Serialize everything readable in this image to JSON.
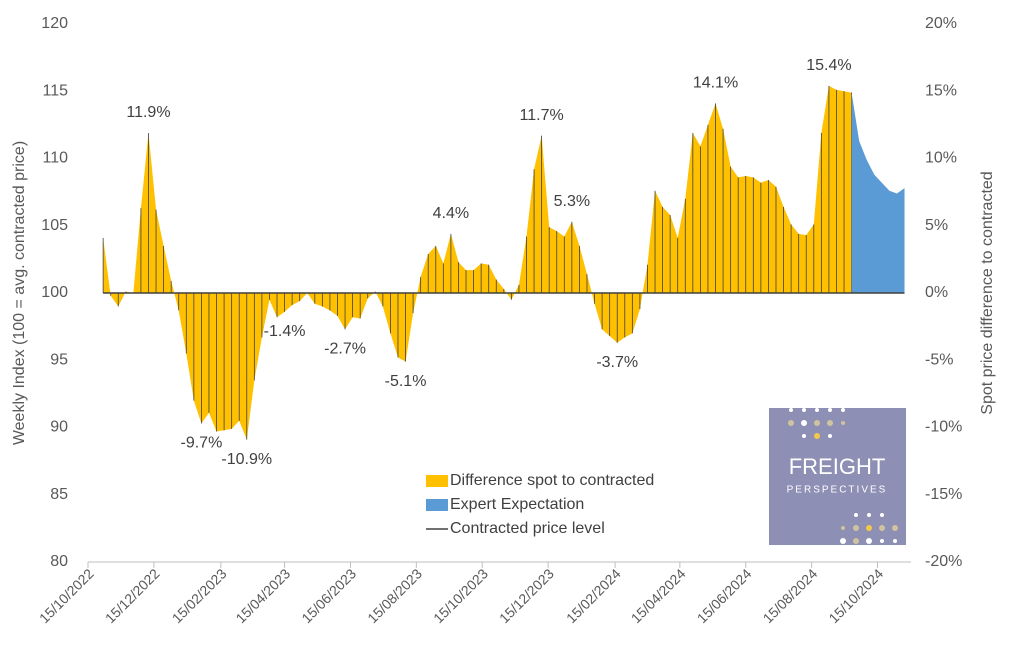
{
  "chart_data": {
    "type": "area",
    "ylabel": "Weekly Index (100 = avg. contracted price)",
    "y2label": "Spot price difference to contracted",
    "ylim": [
      80,
      120
    ],
    "yticks": [
      80,
      85,
      90,
      95,
      100,
      105,
      110,
      115,
      120
    ],
    "y2lim": [
      -20,
      20
    ],
    "y2ticks": [
      {
        "value": -20,
        "label": "-20%"
      },
      {
        "value": -15,
        "label": "-15%"
      },
      {
        "value": -10,
        "label": "-10%"
      },
      {
        "value": -5,
        "label": "-5%"
      },
      {
        "value": 0,
        "label": "0%"
      },
      {
        "value": 5,
        "label": "5%"
      },
      {
        "value": 10,
        "label": "10%"
      },
      {
        "value": 15,
        "label": "15%"
      },
      {
        "value": 20,
        "label": "20%"
      }
    ],
    "xlim": [
      "15/10/2022",
      "15/11/2024"
    ],
    "xticks": [
      "15/10/2022",
      "15/12/2022",
      "15/02/2023",
      "15/04/2023",
      "15/06/2023",
      "15/08/2023",
      "15/10/2023",
      "15/12/2023",
      "15/02/2024",
      "15/04/2024",
      "15/06/2024",
      "15/08/2024",
      "15/10/2024"
    ],
    "series": [
      {
        "name": "Difference spot to contracted",
        "color": "#FFC000",
        "axis": "y2",
        "drop_lines": true,
        "x": [
          "29/10/2022",
          "05/11/2022",
          "12/11/2022",
          "19/11/2022",
          "26/11/2022",
          "03/12/2022",
          "10/12/2022",
          "17/12/2022",
          "24/12/2022",
          "31/12/2022",
          "07/01/2023",
          "14/01/2023",
          "21/01/2023",
          "28/01/2023",
          "04/02/2023",
          "11/02/2023",
          "18/02/2023",
          "25/02/2023",
          "04/03/2023",
          "11/03/2023",
          "18/03/2023",
          "25/03/2023",
          "01/04/2023",
          "08/04/2023",
          "15/04/2023",
          "22/04/2023",
          "29/04/2023",
          "06/05/2023",
          "13/05/2023",
          "20/05/2023",
          "27/05/2023",
          "03/06/2023",
          "10/06/2023",
          "17/06/2023",
          "24/06/2023",
          "01/07/2023",
          "08/07/2023",
          "15/07/2023",
          "22/07/2023",
          "29/07/2023",
          "05/08/2023",
          "12/08/2023",
          "19/08/2023",
          "26/08/2023",
          "02/09/2023",
          "09/09/2023",
          "16/09/2023",
          "23/09/2023",
          "30/09/2023",
          "07/10/2023",
          "14/10/2023",
          "21/10/2023",
          "28/10/2023",
          "04/11/2023",
          "11/11/2023",
          "18/11/2023",
          "25/11/2023",
          "02/12/2023",
          "09/12/2023",
          "16/12/2023",
          "23/12/2023",
          "30/12/2023",
          "06/01/2024",
          "13/01/2024",
          "20/01/2024",
          "27/01/2024",
          "03/02/2024",
          "10/02/2024",
          "17/02/2024",
          "24/02/2024",
          "02/03/2024",
          "09/03/2024",
          "16/03/2024",
          "23/03/2024",
          "30/03/2024",
          "06/04/2024",
          "13/04/2024",
          "20/04/2024",
          "27/04/2024",
          "04/05/2024",
          "11/05/2024",
          "18/05/2024",
          "25/05/2024",
          "01/06/2024",
          "08/06/2024",
          "15/06/2024",
          "22/06/2024",
          "29/06/2024",
          "06/07/2024",
          "13/07/2024",
          "20/07/2024",
          "27/07/2024",
          "03/08/2024",
          "10/08/2024",
          "17/08/2024",
          "24/08/2024",
          "31/08/2024",
          "07/09/2024",
          "14/09/2024",
          "21/09/2024"
        ],
        "values": [
          4.1,
          -0.2,
          -1.0,
          0.1,
          0.0,
          6.3,
          11.9,
          6.2,
          3.5,
          0.9,
          -1.3,
          -4.5,
          -8.0,
          -9.7,
          -8.9,
          -10.3,
          -10.2,
          -10.1,
          -9.5,
          -10.9,
          -6.5,
          -3.3,
          -0.5,
          -1.8,
          -1.4,
          -0.9,
          -0.6,
          0.0,
          -0.8,
          -1.0,
          -1.3,
          -1.7,
          -2.7,
          -1.8,
          -1.9,
          -0.4,
          0.1,
          -1.0,
          -3.0,
          -4.8,
          -5.1,
          -1.5,
          1.2,
          2.9,
          3.5,
          2.2,
          4.4,
          2.3,
          1.7,
          1.7,
          2.2,
          2.1,
          1.0,
          0.3,
          -0.5,
          0.6,
          4.2,
          9.2,
          11.7,
          4.9,
          4.6,
          4.2,
          5.3,
          3.5,
          1.4,
          -0.8,
          -2.7,
          -3.2,
          -3.7,
          -3.3,
          -3.0,
          -1.2,
          2.1,
          7.6,
          6.4,
          5.8,
          4.1,
          7.0,
          11.9,
          10.9,
          12.5,
          14.1,
          12.2,
          9.4,
          8.6,
          8.7,
          8.6,
          8.2,
          8.4,
          7.9,
          6.4,
          5.1,
          4.4,
          4.3,
          5.1,
          11.9,
          15.4,
          15.1,
          15.0,
          14.9
        ],
        "value_labels": [
          null,
          null,
          null,
          null,
          null,
          null,
          "11.9%",
          null,
          null,
          null,
          null,
          null,
          null,
          "-9.7%",
          null,
          null,
          null,
          null,
          null,
          "-10.9%",
          null,
          null,
          null,
          null,
          "-1.4%",
          null,
          null,
          null,
          null,
          null,
          null,
          null,
          "-2.7%",
          null,
          null,
          null,
          null,
          null,
          null,
          null,
          "-5.1%",
          null,
          null,
          null,
          null,
          null,
          "4.4%",
          null,
          null,
          null,
          null,
          null,
          null,
          null,
          null,
          null,
          null,
          null,
          "11.7%",
          null,
          null,
          null,
          "5.3%",
          null,
          null,
          null,
          null,
          null,
          "-3.7%",
          null,
          null,
          null,
          null,
          null,
          null,
          null,
          null,
          null,
          null,
          null,
          null,
          "14.1%",
          null,
          null,
          null,
          null,
          null,
          null,
          null,
          null,
          null,
          null,
          null,
          null,
          null,
          null,
          "15.4%",
          null,
          null,
          null
        ]
      },
      {
        "name": "Expert Expectation",
        "color": "#5B9BD5",
        "axis": "y2",
        "drop_lines": false,
        "x": [
          "21/09/2024",
          "28/09/2024",
          "05/10/2024",
          "12/10/2024",
          "19/10/2024",
          "26/10/2024",
          "02/11/2024",
          "09/11/2024"
        ],
        "values": [
          14.9,
          11.3,
          9.9,
          8.8,
          8.2,
          7.6,
          7.4,
          7.8
        ]
      }
    ],
    "reference_line": {
      "name": "Contracted price level",
      "color": "#404040",
      "axis": "y2",
      "value": 0
    },
    "logo": {
      "title": "FREIGHT",
      "subtitle": "PERSPECTIVES",
      "color": "#8E8FB5"
    }
  }
}
